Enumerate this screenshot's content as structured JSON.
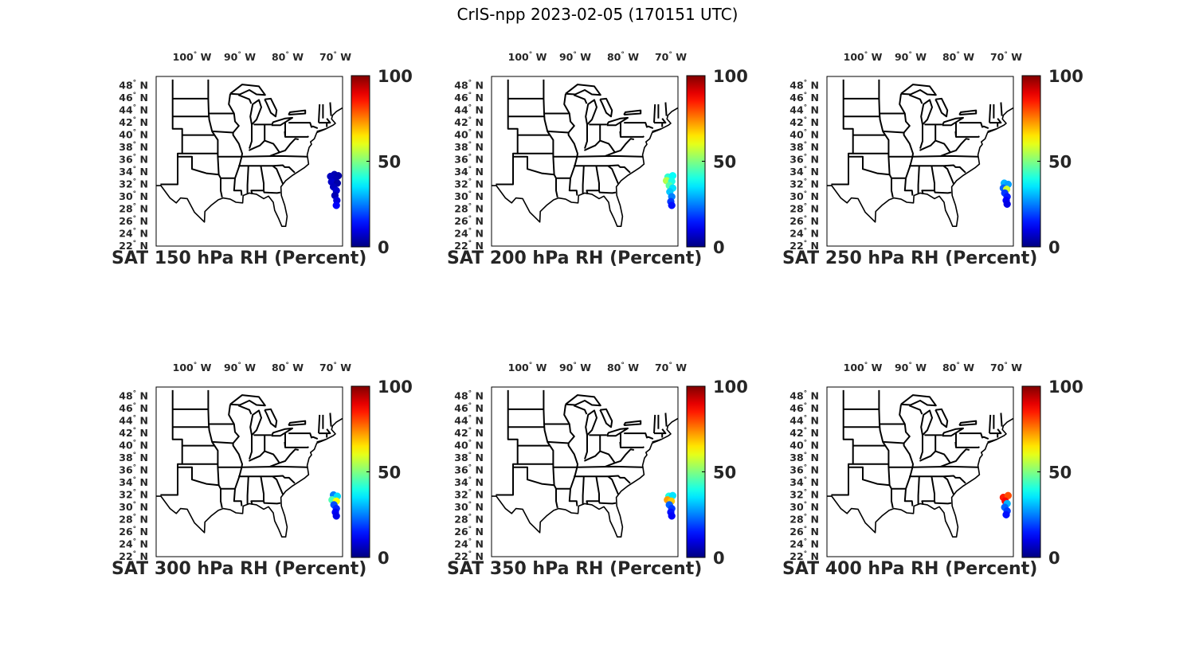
{
  "title": "CrIS-npp 2023-02-05 (170151 UTC)",
  "map": {
    "lon_ticks": [
      {
        "deg": "100",
        "dir": "W"
      },
      {
        "deg": "90",
        "dir": "W"
      },
      {
        "deg": "80",
        "dir": "W"
      },
      {
        "deg": "70",
        "dir": "W"
      }
    ],
    "lat_ticks": [
      {
        "deg": "48",
        "dir": "N"
      },
      {
        "deg": "46",
        "dir": "N"
      },
      {
        "deg": "44",
        "dir": "N"
      },
      {
        "deg": "42",
        "dir": "N"
      },
      {
        "deg": "40",
        "dir": "N"
      },
      {
        "deg": "38",
        "dir": "N"
      },
      {
        "deg": "36",
        "dir": "N"
      },
      {
        "deg": "34",
        "dir": "N"
      },
      {
        "deg": "32",
        "dir": "N"
      },
      {
        "deg": "30",
        "dir": "N"
      },
      {
        "deg": "28",
        "dir": "N"
      },
      {
        "deg": "26",
        "dir": "N"
      },
      {
        "deg": "24",
        "dir": "N"
      },
      {
        "deg": "22",
        "dir": "N"
      }
    ],
    "colorbar": {
      "colormap": "jet",
      "min": 0,
      "max": 100,
      "ticks": [
        "100",
        "50",
        "0"
      ]
    }
  },
  "panels": [
    {
      "title": "SAT 150 hPa RH (Percent)",
      "obs": [
        {
          "lon": -70.2,
          "lat": 33.6,
          "rh": 5
        },
        {
          "lon": -69.4,
          "lat": 33.4,
          "rh": 4
        },
        {
          "lon": -71.0,
          "lat": 33.3,
          "rh": 6
        },
        {
          "lon": -70.0,
          "lat": 32.8,
          "rh": 5
        },
        {
          "lon": -70.8,
          "lat": 32.4,
          "rh": 7
        },
        {
          "lon": -69.6,
          "lat": 32.2,
          "rh": 4
        },
        {
          "lon": -70.4,
          "lat": 31.6,
          "rh": 6
        },
        {
          "lon": -69.8,
          "lat": 31.0,
          "rh": 8
        },
        {
          "lon": -70.1,
          "lat": 30.2,
          "rh": 5
        },
        {
          "lon": -69.7,
          "lat": 29.4,
          "rh": 9
        },
        {
          "lon": -69.8,
          "lat": 28.6,
          "rh": 12
        }
      ]
    },
    {
      "title": "SAT 200 hPa RH (Percent)",
      "obs": [
        {
          "lon": -70.6,
          "lat": 33.2,
          "rh": 42
        },
        {
          "lon": -69.6,
          "lat": 33.4,
          "rh": 38
        },
        {
          "lon": -70.9,
          "lat": 32.6,
          "rh": 55
        },
        {
          "lon": -69.8,
          "lat": 32.5,
          "rh": 40
        },
        {
          "lon": -70.3,
          "lat": 31.8,
          "rh": 46
        },
        {
          "lon": -69.6,
          "lat": 31.4,
          "rh": 35
        },
        {
          "lon": -70.2,
          "lat": 30.8,
          "rh": 32
        },
        {
          "lon": -69.8,
          "lat": 30.0,
          "rh": 25
        },
        {
          "lon": -70.0,
          "lat": 29.2,
          "rh": 18
        },
        {
          "lon": -69.8,
          "lat": 28.6,
          "rh": 14
        }
      ]
    },
    {
      "title": "SAT 250 hPa RH (Percent)",
      "obs": [
        {
          "lon": -70.4,
          "lat": 32.2,
          "rh": 30
        },
        {
          "lon": -69.6,
          "lat": 32.0,
          "rh": 28
        },
        {
          "lon": -70.6,
          "lat": 31.4,
          "rh": 22
        },
        {
          "lon": -69.9,
          "lat": 31.2,
          "rh": 58
        },
        {
          "lon": -70.3,
          "lat": 30.6,
          "rh": 18
        },
        {
          "lon": -69.8,
          "lat": 30.0,
          "rh": 15
        },
        {
          "lon": -70.0,
          "lat": 29.4,
          "rh": 12
        },
        {
          "lon": -69.8,
          "lat": 28.8,
          "rh": 10
        }
      ]
    },
    {
      "title": "SAT 300 hPa RH (Percent)",
      "obs": [
        {
          "lon": -70.4,
          "lat": 32.0,
          "rh": 25
        },
        {
          "lon": -69.6,
          "lat": 31.8,
          "rh": 34
        },
        {
          "lon": -70.7,
          "lat": 31.2,
          "rh": 45
        },
        {
          "lon": -69.8,
          "lat": 31.0,
          "rh": 62
        },
        {
          "lon": -70.3,
          "lat": 30.4,
          "rh": 20
        },
        {
          "lon": -69.8,
          "lat": 29.8,
          "rh": 16
        },
        {
          "lon": -70.0,
          "lat": 29.2,
          "rh": 12
        },
        {
          "lon": -69.8,
          "lat": 28.6,
          "rh": 10
        }
      ]
    },
    {
      "title": "SAT 350 hPa RH (Percent)",
      "obs": [
        {
          "lon": -70.4,
          "lat": 31.8,
          "rh": 40
        },
        {
          "lon": -69.6,
          "lat": 31.9,
          "rh": 35
        },
        {
          "lon": -70.7,
          "lat": 31.2,
          "rh": 72
        },
        {
          "lon": -69.9,
          "lat": 31.0,
          "rh": 68
        },
        {
          "lon": -70.3,
          "lat": 30.4,
          "rh": 22
        },
        {
          "lon": -69.8,
          "lat": 29.8,
          "rh": 18
        },
        {
          "lon": -70.0,
          "lat": 29.2,
          "rh": 14
        },
        {
          "lon": -69.8,
          "lat": 28.6,
          "rh": 12
        }
      ]
    },
    {
      "title": "SAT 400 hPa RH (Percent)",
      "obs": [
        {
          "lon": -70.6,
          "lat": 31.6,
          "rh": 85
        },
        {
          "lon": -69.6,
          "lat": 31.9,
          "rh": 80
        },
        {
          "lon": -70.2,
          "lat": 31.0,
          "rh": 88
        },
        {
          "lon": -69.8,
          "lat": 30.6,
          "rh": 30
        },
        {
          "lon": -70.3,
          "lat": 30.0,
          "rh": 22
        },
        {
          "lon": -69.8,
          "lat": 29.4,
          "rh": 18
        },
        {
          "lon": -70.0,
          "lat": 28.8,
          "rh": 14
        }
      ]
    }
  ]
}
